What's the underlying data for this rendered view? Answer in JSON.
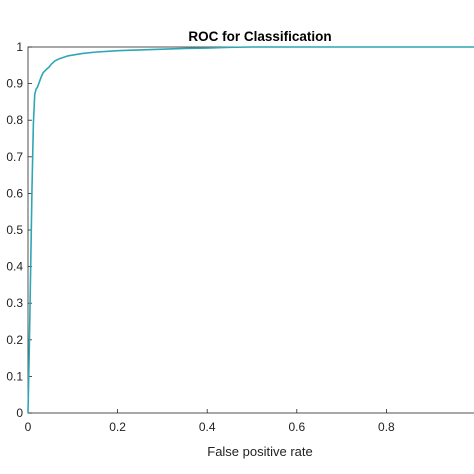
{
  "chart_data": {
    "type": "line",
    "title": "ROC for Classification",
    "xlabel": "False positive rate",
    "ylabel": "",
    "xlim": [
      0,
      1
    ],
    "ylim": [
      0,
      1
    ],
    "xticks": [
      "0",
      "0.2",
      "0.4",
      "0.6",
      "0.8"
    ],
    "yticks": [
      "0",
      "0.1",
      "0.2",
      "0.3",
      "0.4",
      "0.5",
      "0.6",
      "0.7",
      "0.8",
      "0.9",
      "1"
    ],
    "grid": false,
    "legend": "none",
    "series": [
      {
        "color": "#2fa6b4",
        "x": [
          0,
          0.003,
          0.006,
          0.009,
          0.012,
          0.015,
          0.018,
          0.021,
          0.024,
          0.027,
          0.03,
          0.034,
          0.038,
          0.042,
          0.047,
          0.052,
          0.06,
          0.07,
          0.08,
          0.09,
          0.1,
          0.12,
          0.15,
          0.2,
          0.25,
          0.3,
          0.35,
          0.4,
          0.45,
          0.5,
          0.6,
          0.7,
          0.8,
          0.9,
          1.0
        ],
        "y": [
          0,
          0.18,
          0.4,
          0.62,
          0.79,
          0.87,
          0.885,
          0.89,
          0.9,
          0.91,
          0.92,
          0.93,
          0.935,
          0.94,
          0.945,
          0.953,
          0.962,
          0.968,
          0.972,
          0.976,
          0.978,
          0.982,
          0.986,
          0.99,
          0.992,
          0.994,
          0.996,
          0.997,
          0.999,
          1.0,
          1.0,
          1.0,
          1.0,
          1.0,
          1.0
        ]
      }
    ]
  }
}
